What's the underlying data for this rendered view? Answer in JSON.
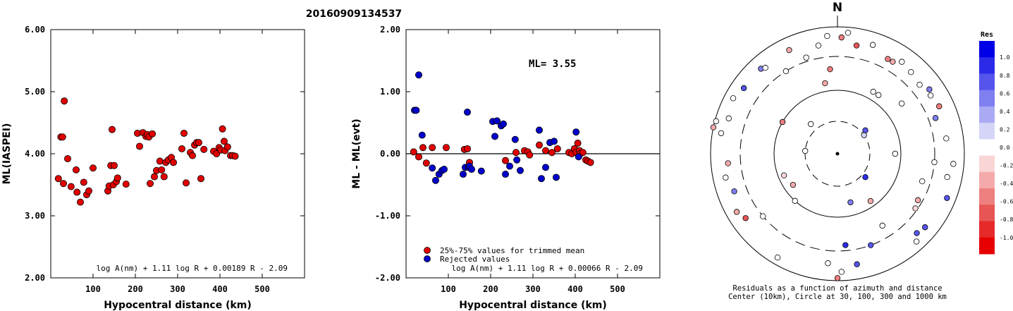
{
  "title": "20160909134537",
  "compass_label": "N",
  "chart_data": [
    {
      "type": "scatter",
      "ylabel": "ML(IASPEI)",
      "xlabel": "Hypocentral distance (km)",
      "xlim": [
        0,
        600
      ],
      "ylim": [
        2.0,
        6.0
      ],
      "xticks": [
        "100",
        "200",
        "300",
        "400",
        "500"
      ],
      "yticks": [
        "2.00",
        "3.00",
        "4.00",
        "5.00",
        "6.00"
      ],
      "formula": "log A(nm) + 1.11 log R + 0.00189 R - 2.09",
      "point_color": "#e00000",
      "points": [
        [
          18,
          3.6
        ],
        [
          24,
          4.27
        ],
        [
          28,
          4.27
        ],
        [
          30,
          3.52
        ],
        [
          32,
          4.85
        ],
        [
          40,
          3.92
        ],
        [
          48,
          3.47
        ],
        [
          60,
          3.74
        ],
        [
          62,
          3.38
        ],
        [
          70,
          3.22
        ],
        [
          78,
          3.54
        ],
        [
          85,
          3.34
        ],
        [
          90,
          3.4
        ],
        [
          100,
          3.77
        ],
        [
          135,
          3.4
        ],
        [
          138,
          3.48
        ],
        [
          142,
          3.81
        ],
        [
          145,
          4.39
        ],
        [
          148,
          3.5
        ],
        [
          150,
          3.81
        ],
        [
          155,
          3.55
        ],
        [
          158,
          3.61
        ],
        [
          178,
          3.51
        ],
        [
          205,
          4.33
        ],
        [
          210,
          4.12
        ],
        [
          218,
          4.34
        ],
        [
          225,
          4.28
        ],
        [
          228,
          4.31
        ],
        [
          232,
          4.27
        ],
        [
          235,
          3.52
        ],
        [
          240,
          4.32
        ],
        [
          245,
          3.63
        ],
        [
          250,
          3.73
        ],
        [
          258,
          3.88
        ],
        [
          262,
          3.74
        ],
        [
          268,
          3.63
        ],
        [
          272,
          3.86
        ],
        [
          278,
          3.9
        ],
        [
          285,
          3.94
        ],
        [
          290,
          3.86
        ],
        [
          310,
          4.08
        ],
        [
          315,
          4.33
        ],
        [
          320,
          3.53
        ],
        [
          330,
          4.02
        ],
        [
          335,
          3.97
        ],
        [
          340,
          4.14
        ],
        [
          345,
          4.18
        ],
        [
          350,
          4.18
        ],
        [
          355,
          3.6
        ],
        [
          362,
          4.07
        ],
        [
          385,
          4.04
        ],
        [
          392,
          4.0
        ],
        [
          398,
          4.1
        ],
        [
          402,
          4.06
        ],
        [
          406,
          4.4
        ],
        [
          410,
          4.2
        ],
        [
          412,
          4.05
        ],
        [
          418,
          4.11
        ],
        [
          425,
          3.97
        ],
        [
          430,
          3.97
        ],
        [
          436,
          3.96
        ]
      ]
    },
    {
      "type": "scatter",
      "ylabel": "ML - ML(evt)",
      "xlabel": "Hypocentral distance (km)",
      "xlim": [
        0,
        600
      ],
      "ylim": [
        -2.0,
        2.0
      ],
      "xticks": [
        "100",
        "200",
        "300",
        "400",
        "500"
      ],
      "yticks": [
        "-2.00",
        "-1.00",
        "0.00",
        "1.00",
        "2.00"
      ],
      "annotation": "ML= 3.55",
      "formula": "log A(nm) + 1.11 log R + 0.00066 R - 2.09",
      "legend": [
        {
          "label": "25%-75% values for trimmed mean",
          "color": "#e00000"
        },
        {
          "label": "Rejected values",
          "color": "#0000cc"
        }
      ],
      "series": [
        {
          "color": "#e00000",
          "points": [
            [
              18,
              0.03
            ],
            [
              30,
              -0.05
            ],
            [
              40,
              0.1
            ],
            [
              48,
              -0.15
            ],
            [
              62,
              0.1
            ],
            [
              95,
              0.1
            ],
            [
              138,
              0.07
            ],
            [
              145,
              0.08
            ],
            [
              150,
              -0.14
            ],
            [
              235,
              -0.11
            ],
            [
              260,
              0.02
            ],
            [
              280,
              0.05
            ],
            [
              288,
              0.03
            ],
            [
              292,
              -0.02
            ],
            [
              315,
              0.14
            ],
            [
              330,
              0.05
            ],
            [
              345,
              0.02
            ],
            [
              358,
              0.08
            ],
            [
              385,
              0.02
            ],
            [
              392,
              0.0
            ],
            [
              398,
              0.08
            ],
            [
              402,
              0.02
            ],
            [
              406,
              0.17
            ],
            [
              410,
              0.05
            ],
            [
              412,
              0.0
            ],
            [
              418,
              0.02
            ],
            [
              425,
              -0.1
            ],
            [
              430,
              -0.12
            ],
            [
              436,
              -0.14
            ]
          ]
        },
        {
          "color": "#0000cc",
          "points": [
            [
              20,
              0.7
            ],
            [
              24,
              0.7
            ],
            [
              30,
              1.27
            ],
            [
              38,
              0.3
            ],
            [
              62,
              -0.23
            ],
            [
              70,
              -0.43
            ],
            [
              78,
              -0.33
            ],
            [
              85,
              -0.27
            ],
            [
              90,
              -0.25
            ],
            [
              135,
              -0.33
            ],
            [
              140,
              -0.22
            ],
            [
              145,
              0.67
            ],
            [
              148,
              -0.22
            ],
            [
              150,
              -0.2
            ],
            [
              155,
              -0.25
            ],
            [
              178,
              -0.28
            ],
            [
              205,
              0.52
            ],
            [
              210,
              0.28
            ],
            [
              215,
              0.53
            ],
            [
              225,
              0.45
            ],
            [
              230,
              0.48
            ],
            [
              235,
              -0.33
            ],
            [
              245,
              -0.2
            ],
            [
              258,
              0.23
            ],
            [
              262,
              -0.1
            ],
            [
              270,
              -0.27
            ],
            [
              315,
              0.38
            ],
            [
              320,
              -0.4
            ],
            [
              330,
              -0.22
            ],
            [
              340,
              0.18
            ],
            [
              350,
              0.2
            ],
            [
              355,
              -0.38
            ],
            [
              402,
              0.35
            ],
            [
              408,
              -0.05
            ]
          ]
        }
      ]
    },
    {
      "type": "polar-scatter",
      "note": "Residuals as a function of azimuth and distance",
      "caption": "Center (10km), Circle at 30, 100, 300 and 1000 km",
      "rings_km": [
        30,
        100,
        300,
        1000
      ],
      "colorbar": {
        "title": "Res",
        "ticks": [
          "1.0",
          "0.8",
          "0.6",
          "0.4",
          "0.2",
          "0.0",
          "-0.2",
          "-0.4",
          "-0.6",
          "-0.8",
          "-1.0"
        ],
        "colors": [
          "#0000e6",
          "#2a2ae8",
          "#5555ec",
          "#7f7ff0",
          "#aaaaf4",
          "#d5d5f8",
          "#ffffff",
          "#fad5d5",
          "#f4aaaa",
          "#ee7f7f",
          "#e85555",
          "#e62a2a",
          "#e60000"
        ]
      },
      "points": [
        {
          "az": 55,
          "dist_km": 30,
          "res": 0.2
        },
        {
          "az": 50,
          "dist_km": 35,
          "res": 0.6
        },
        {
          "az": 130,
          "dist_km": 35,
          "res": 0.8
        },
        {
          "az": 275,
          "dist_km": 30,
          "res": 0.0
        },
        {
          "az": 318,
          "dist_km": 40,
          "res": 0.0
        },
        {
          "az": 235,
          "dist_km": 70,
          "res": -0.3
        },
        {
          "az": 165,
          "dist_km": 60,
          "res": 0.5
        },
        {
          "az": 145,
          "dist_km": 80,
          "res": -0.3
        },
        {
          "az": 350,
          "dist_km": 130,
          "res": -0.3
        },
        {
          "az": 300,
          "dist_km": 100,
          "res": -0.5
        },
        {
          "az": 35,
          "dist_km": 130,
          "res": 0.0
        },
        {
          "az": 90,
          "dist_km": 80,
          "res": 0.0
        },
        {
          "az": 248,
          "dist_km": 80,
          "res": -0.2
        },
        {
          "az": 222,
          "dist_km": 100,
          "res": 0.0
        },
        {
          "az": 120,
          "dist_km": 260,
          "res": -0.4
        },
        {
          "az": 125,
          "dist_km": 280,
          "res": -0.2
        },
        {
          "az": 95,
          "dist_km": 300,
          "res": 0.0
        },
        {
          "az": 108,
          "dist_km": 230,
          "res": 0.0
        },
        {
          "az": 10,
          "dist_km": 500,
          "res": -0.6
        },
        {
          "az": 18,
          "dist_km": 600,
          "res": 0.0
        },
        {
          "az": 28,
          "dist_km": 450,
          "res": -0.5
        },
        {
          "az": 31,
          "dist_km": 450,
          "res": -0.3
        },
        {
          "az": 35,
          "dist_km": 550,
          "res": 0.0
        },
        {
          "az": 42,
          "dist_km": 500,
          "res": 0.0
        },
        {
          "az": 50,
          "dist_km": 450,
          "res": 0.0
        },
        {
          "az": 55,
          "dist_km": 550,
          "res": 0.5
        },
        {
          "az": 58,
          "dist_km": 500,
          "res": 0.0
        },
        {
          "az": 65,
          "dist_km": 550,
          "res": -0.5
        },
        {
          "az": 52,
          "dist_km": 180,
          "res": 0.0
        },
        {
          "az": 70,
          "dist_km": 400,
          "res": 0.5
        },
        {
          "az": 82,
          "dist_km": 500,
          "res": 0.0
        },
        {
          "az": 95,
          "dist_km": 650,
          "res": 0.0
        },
        {
          "az": 102,
          "dist_km": 550,
          "res": 0.0
        },
        {
          "az": 112,
          "dist_km": 700,
          "res": 0.6
        },
        {
          "az": 130,
          "dist_km": 600,
          "res": 0.6
        },
        {
          "az": 135,
          "dist_km": 550,
          "res": 0.6
        },
        {
          "az": 138,
          "dist_km": 700,
          "res": 0.0
        },
        {
          "az": 148,
          "dist_km": 200,
          "res": 0.0
        },
        {
          "az": 160,
          "dist_km": 300,
          "res": 0.6
        },
        {
          "az": 170,
          "dist_km": 550,
          "res": 0.6
        },
        {
          "az": 175,
          "dist_km": 250,
          "res": 0.8
        },
        {
          "az": 178,
          "dist_km": 700,
          "res": 0.0
        },
        {
          "az": 180,
          "dist_km": 900,
          "res": -0.5
        },
        {
          "az": 185,
          "dist_km": 500,
          "res": 0.0
        },
        {
          "az": 210,
          "dist_km": 750,
          "res": 0.0
        },
        {
          "az": 230,
          "dist_km": 300,
          "res": 0.0
        },
        {
          "az": 235,
          "dist_km": 550,
          "res": -0.6
        },
        {
          "az": 240,
          "dist_km": 650,
          "res": -0.4
        },
        {
          "az": 250,
          "dist_km": 500,
          "res": 0.5
        },
        {
          "az": 258,
          "dist_km": 600,
          "res": 0.0
        },
        {
          "az": 265,
          "dist_km": 500,
          "res": -0.3
        },
        {
          "az": 280,
          "dist_km": 700,
          "res": 0.0
        },
        {
          "az": 282,
          "dist_km": 1000,
          "res": -0.4
        },
        {
          "az": 285,
          "dist_km": 950,
          "res": 0.0
        },
        {
          "az": 288,
          "dist_km": 600,
          "res": 0.0
        },
        {
          "az": 298,
          "dist_km": 700,
          "res": 0.0
        },
        {
          "az": 305,
          "dist_km": 600,
          "res": 0.6
        },
        {
          "az": 318,
          "dist_km": 600,
          "res": 0.5
        },
        {
          "az": 320,
          "dist_km": 550,
          "res": 0.0
        },
        {
          "az": 328,
          "dist_km": 300,
          "res": 0.0
        },
        {
          "az": 335,
          "dist_km": 600,
          "res": -0.3
        },
        {
          "az": 342,
          "dist_km": 350,
          "res": 0.0
        },
        {
          "az": 350,
          "dist_km": 500,
          "res": 0.0
        },
        {
          "az": 355,
          "dist_km": 700,
          "res": 0.0
        },
        {
          "az": 2,
          "dist_km": 650,
          "res": -0.5
        },
        {
          "az": 5,
          "dist_km": 800,
          "res": 0.0
        },
        {
          "az": 30,
          "dist_km": 130,
          "res": 0.0
        },
        {
          "az": 355,
          "dist_km": 200,
          "res": -0.5
        }
      ]
    }
  ]
}
